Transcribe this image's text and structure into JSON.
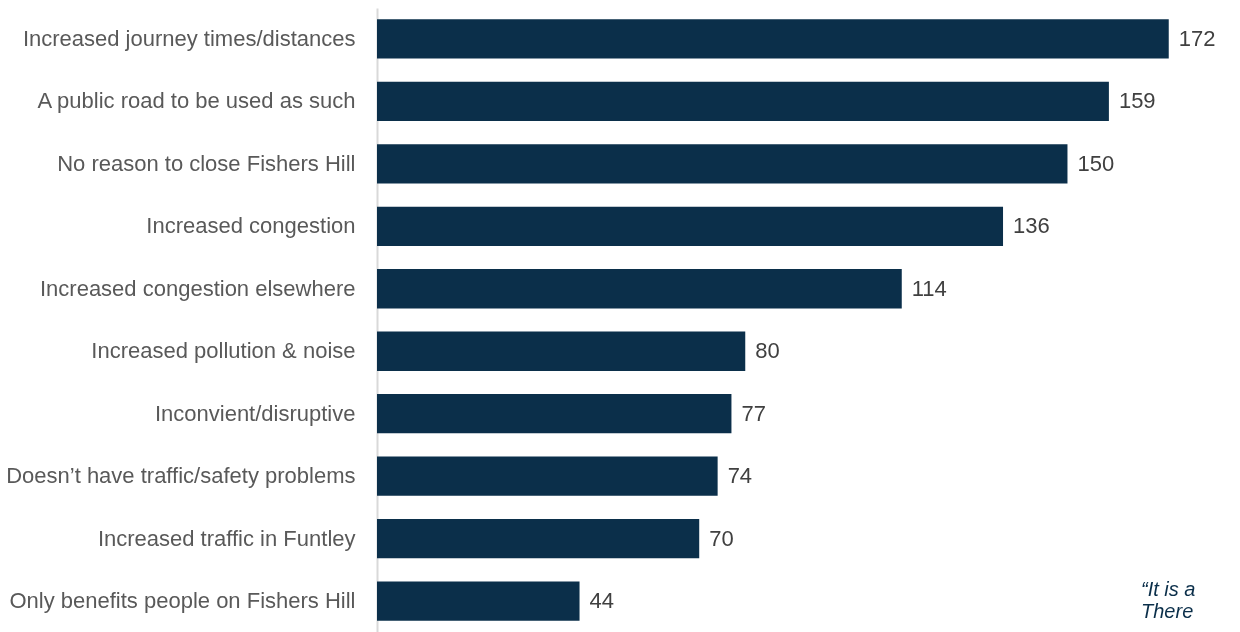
{
  "chart_data": {
    "type": "bar",
    "orientation": "horizontal",
    "categories": [
      "Increased journey times/distances",
      "A public road to be used as such",
      "No reason to close Fishers Hill",
      "Increased congestion ",
      "Increased congestion elsewhere",
      "Increased pollution & noise",
      "Inconvient/disruptive",
      "Doesn’t have traffic/safety problems",
      "Increased traffic in Funtley",
      "Only benefits people on Fishers Hill"
    ],
    "values": [
      172,
      159,
      150,
      136,
      114,
      80,
      77,
      74,
      70,
      44
    ],
    "color": "#0b2f4a",
    "data_labels": true,
    "tick_labels": "y",
    "annotations": [
      "“It is a\nThere"
    ]
  }
}
